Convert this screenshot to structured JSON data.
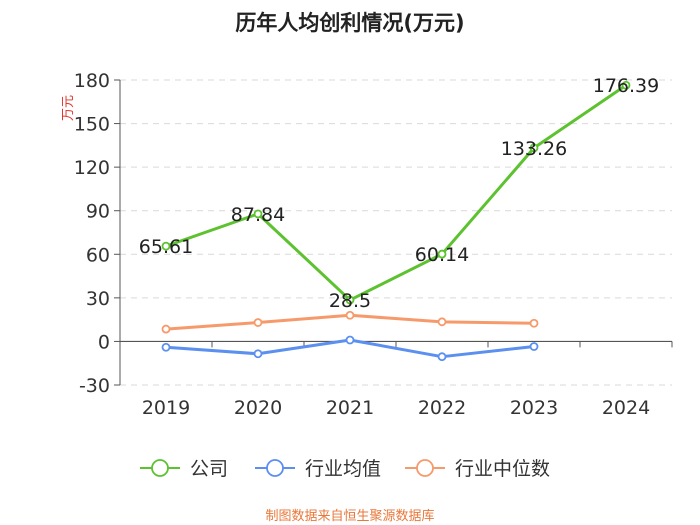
{
  "chart_data": {
    "type": "line",
    "title": "历年人均创利情况(万元)",
    "ylabel": "万元",
    "categories": [
      "2019",
      "2020",
      "2021",
      "2022",
      "2023",
      "2024"
    ],
    "ylim": [
      -30,
      180
    ],
    "yticks": [
      -30,
      0,
      30,
      60,
      90,
      120,
      150,
      180
    ],
    "series": [
      {
        "name": "公司",
        "color": "#5dc22f",
        "values": [
          65.61,
          87.84,
          28.5,
          60.14,
          133.26,
          176.39
        ],
        "labels": [
          "65.61",
          "87.84",
          "28.5",
          "60.14",
          "133.26",
          "176.39"
        ]
      },
      {
        "name": "行业均值",
        "color": "#5b8ff0",
        "values": [
          -4,
          -8.5,
          1,
          -10.5,
          -3.5,
          null
        ]
      },
      {
        "name": "行业中位数",
        "color": "#f79a6b",
        "values": [
          8.5,
          13,
          18,
          13.5,
          12.5,
          null
        ]
      }
    ],
    "legend": "bottom-center",
    "grid": true,
    "source": "制图数据来自恒生聚源数据库",
    "colors": {
      "label_red": "#e0322a",
      "source_orange": "#e8783a",
      "grid": "#d9d9d9",
      "axis": "#555555"
    }
  }
}
